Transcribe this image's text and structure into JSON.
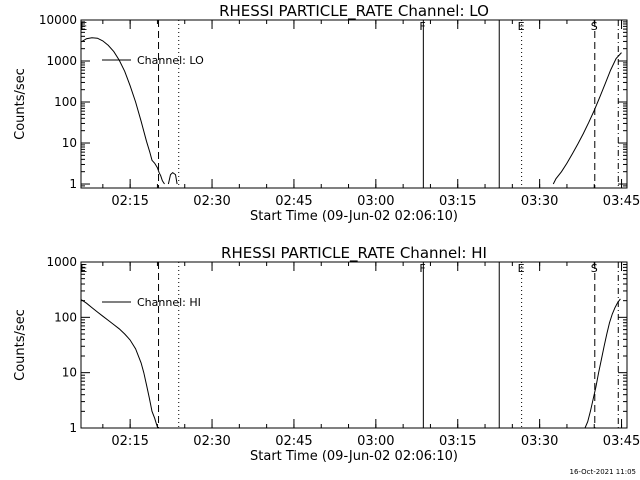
{
  "footer_timestamp": "16-Oct-2021 11:05",
  "chart_data": [
    {
      "type": "line",
      "title": "RHESSI PARTICLE_RATE Channel: LO",
      "xlabel": "Start Time (09-Jun-02 02:06:10)",
      "ylabel": "Counts/sec",
      "yscale": "log",
      "ylim": [
        0.8,
        10000
      ],
      "xlim_minutes": [
        0,
        100
      ],
      "x_ticks": [
        {
          "label": "02:15",
          "minute": 9
        },
        {
          "label": "02:30",
          "minute": 24
        },
        {
          "label": "02:45",
          "minute": 39
        },
        {
          "label": "03:00",
          "minute": 54
        },
        {
          "label": "03:15",
          "minute": 69
        },
        {
          "label": "03:30",
          "minute": 84
        },
        {
          "label": "03:45",
          "minute": 99
        }
      ],
      "y_ticks": [
        {
          "label": "1",
          "value": 1
        },
        {
          "label": "10",
          "value": 10
        },
        {
          "label": "100",
          "value": 100
        },
        {
          "label": "1000",
          "value": 1000
        },
        {
          "label": "10000",
          "value": 10000
        }
      ],
      "legend": {
        "label": "Channel: LO",
        "position": "top-left"
      },
      "markers": [
        {
          "label": "E",
          "minute": 0.6,
          "style": "none"
        },
        {
          "label": "",
          "minute": 14.2,
          "style": "dashed"
        },
        {
          "label": "",
          "minute": 17.9,
          "style": "dotted"
        },
        {
          "label": "F",
          "minute": 62.7,
          "style": "solid"
        },
        {
          "label": "",
          "minute": 76.6,
          "style": "solid"
        },
        {
          "label": "E",
          "minute": 80.7,
          "style": "dotted"
        },
        {
          "label": "S",
          "minute": 94.1,
          "style": "dashed"
        },
        {
          "label": "",
          "minute": 98.4,
          "style": "dashdot"
        }
      ],
      "segments": [
        {
          "x": [
            0,
            1,
            2,
            3,
            4,
            5,
            6,
            7,
            8,
            9,
            10,
            11,
            12,
            12.6,
            13.0,
            13.5,
            14.0,
            14.3,
            14.6,
            14.9,
            15.3
          ],
          "y": [
            2900,
            3500,
            3700,
            3600,
            3100,
            2400,
            1700,
            1050,
            560,
            250,
            100,
            34,
            11,
            6,
            3.8,
            3.2,
            2.5,
            1.9,
            1.6,
            1.2,
            1.0
          ]
        },
        {
          "x": [
            16.0,
            16.4,
            16.8,
            17.3,
            17.6
          ],
          "y": [
            1.0,
            1.7,
            1.9,
            1.7,
            1.0
          ]
        },
        {
          "x": [
            86.5,
            87,
            88,
            89,
            90,
            91,
            92,
            93,
            94,
            95,
            96,
            97,
            98,
            99
          ],
          "y": [
            1.0,
            1.35,
            2.0,
            3.2,
            5.5,
            9.5,
            17,
            32,
            62,
            130,
            280,
            600,
            1150,
            1600
          ]
        }
      ]
    },
    {
      "type": "line",
      "title": "RHESSI PARTICLE_RATE Channel: HI",
      "xlabel": "Start Time (09-Jun-02 02:06:10)",
      "ylabel": "Counts/sec",
      "yscale": "log",
      "ylim": [
        1,
        1000
      ],
      "xlim_minutes": [
        0,
        100
      ],
      "x_ticks": [
        {
          "label": "02:15",
          "minute": 9
        },
        {
          "label": "02:30",
          "minute": 24
        },
        {
          "label": "02:45",
          "minute": 39
        },
        {
          "label": "03:00",
          "minute": 54
        },
        {
          "label": "03:15",
          "minute": 69
        },
        {
          "label": "03:30",
          "minute": 84
        },
        {
          "label": "03:45",
          "minute": 99
        }
      ],
      "y_ticks": [
        {
          "label": "1",
          "value": 1
        },
        {
          "label": "10",
          "value": 10
        },
        {
          "label": "100",
          "value": 100
        },
        {
          "label": "1000",
          "value": 1000
        }
      ],
      "legend": {
        "label": "Channel: HI",
        "position": "top-left"
      },
      "markers": [
        {
          "label": "E",
          "minute": 0.6,
          "style": "none"
        },
        {
          "label": "",
          "minute": 14.2,
          "style": "dashed"
        },
        {
          "label": "",
          "minute": 17.9,
          "style": "dotted"
        },
        {
          "label": "F",
          "minute": 62.7,
          "style": "solid"
        },
        {
          "label": "",
          "minute": 76.6,
          "style": "solid"
        },
        {
          "label": "E",
          "minute": 80.7,
          "style": "dotted"
        },
        {
          "label": "S",
          "minute": 94.1,
          "style": "dashed"
        },
        {
          "label": "",
          "minute": 98.4,
          "style": "dashdot"
        }
      ],
      "segments": [
        {
          "x": [
            0,
            1,
            2,
            3,
            4,
            5,
            6,
            7,
            8,
            9,
            10,
            11,
            11.5,
            12,
            12.5,
            13,
            13.5,
            13.8,
            14.0,
            14.2
          ],
          "y": [
            210,
            180,
            150,
            125,
            105,
            88,
            74,
            62,
            50,
            39,
            27,
            15,
            10,
            6,
            3.5,
            2.0,
            1.5,
            1.2,
            1.05,
            1.0
          ]
        },
        {
          "x": [
            92.3,
            92.8,
            93.3,
            93.8,
            94.3,
            94.8,
            95.3,
            95.8,
            96.3,
            96.8,
            97.3,
            97.8,
            98.3,
            98.8
          ],
          "y": [
            1.0,
            1.3,
            2.0,
            3.3,
            5.5,
            10,
            17,
            30,
            50,
            80,
            115,
            150,
            185,
            215
          ]
        }
      ]
    }
  ]
}
